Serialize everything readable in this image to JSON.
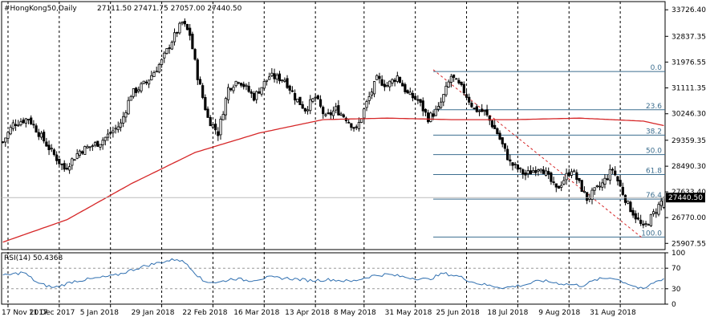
{
  "header": {
    "symbol": "#HongKong50,Daily",
    "ohlc": "27111.50 27471.75 27057.00 27440.50"
  },
  "colors": {
    "background": "#ffffff",
    "candle_bull": "#ffffff",
    "candle_bear": "#000000",
    "ma": "#d62728",
    "fib": "#3c6e8f",
    "rsi": "#2f6fb0",
    "price_tag": "#000000"
  },
  "chart_data": [
    {
      "type": "candlestick",
      "symbol": "#HongKong50",
      "timeframe": "Daily",
      "last": {
        "open": 27111.5,
        "high": 27471.75,
        "low": 27057.0,
        "close": 27440.5,
        "label": "27440.50"
      },
      "y_ticks": [
        "33726.40",
        "32837.35",
        "31976.55",
        "31111.35",
        "30246.30",
        "29359.35",
        "28490.30",
        "27633.40",
        "26770.00",
        "25907.55"
      ],
      "ylim": [
        25700,
        34000
      ],
      "x_ticks": [
        "17 Nov 2017",
        "11 Dec 2017",
        "5 Jan 2018",
        "29 Jan 2018",
        "22 Feb 2018",
        "16 Mar 2018",
        "13 Apr 2018",
        "8 May 2018",
        "31 May 2018",
        "25 Jun 2018",
        "18 Jul 2018",
        "9 Aug 2018",
        "31 Aug 2018"
      ],
      "close_path": [
        [
          0,
          29300
        ],
        [
          4,
          29900
        ],
        [
          10,
          30100
        ],
        [
          18,
          29100
        ],
        [
          24,
          28400
        ],
        [
          30,
          29000
        ],
        [
          38,
          29300
        ],
        [
          46,
          29900
        ],
        [
          50,
          30900
        ],
        [
          56,
          31300
        ],
        [
          62,
          32000
        ],
        [
          66,
          32700
        ],
        [
          70,
          33300
        ],
        [
          73,
          32900
        ],
        [
          76,
          31500
        ],
        [
          80,
          30100
        ],
        [
          84,
          29600
        ],
        [
          88,
          31100
        ],
        [
          92,
          31400
        ],
        [
          98,
          30800
        ],
        [
          104,
          31500
        ],
        [
          110,
          31400
        ],
        [
          114,
          30800
        ],
        [
          118,
          30400
        ],
        [
          122,
          30800
        ],
        [
          126,
          30100
        ],
        [
          130,
          30400
        ],
        [
          134,
          30100
        ],
        [
          138,
          29700
        ],
        [
          142,
          30600
        ],
        [
          146,
          31400
        ],
        [
          150,
          31200
        ],
        [
          154,
          31500
        ],
        [
          158,
          30900
        ],
        [
          162,
          30700
        ],
        [
          166,
          30100
        ],
        [
          170,
          30400
        ],
        [
          175,
          31500
        ],
        [
          180,
          31000
        ],
        [
          184,
          30400
        ],
        [
          188,
          30300
        ],
        [
          193,
          29600
        ],
        [
          198,
          28600
        ],
        [
          204,
          28200
        ],
        [
          210,
          28500
        ],
        [
          216,
          27700
        ],
        [
          222,
          28400
        ],
        [
          228,
          27400
        ],
        [
          234,
          27900
        ],
        [
          238,
          28400
        ],
        [
          244,
          27200
        ],
        [
          250,
          26400
        ],
        [
          254,
          26900
        ],
        [
          258,
          27440
        ]
      ],
      "ma_path": [
        [
          0,
          25950
        ],
        [
          25,
          26700
        ],
        [
          50,
          27900
        ],
        [
          75,
          28950
        ],
        [
          100,
          29600
        ],
        [
          125,
          30050
        ],
        [
          150,
          30100
        ],
        [
          175,
          30050
        ],
        [
          200,
          30050
        ],
        [
          225,
          30100
        ],
        [
          250,
          30000
        ],
        [
          258,
          29850
        ]
      ],
      "fibonacci": {
        "levels": [
          {
            "label": "0.0",
            "price": 31660
          },
          {
            "label": "23.6",
            "price": 30380
          },
          {
            "label": "38.2",
            "price": 29530
          },
          {
            "label": "50.0",
            "price": 28880
          },
          {
            "label": "61.8",
            "price": 28210
          },
          {
            "label": "76.4",
            "price": 27390
          },
          {
            "label": "100.0",
            "price": 26120
          }
        ]
      },
      "trendline": {
        "from": [
          168,
          31720
        ],
        "to": [
          250,
          26060
        ]
      }
    },
    {
      "type": "line",
      "title": "RSI(14) 50.4368",
      "y_ticks": [
        "100",
        "70",
        "30",
        "0"
      ],
      "ylim": [
        0,
        100
      ],
      "values": [
        [
          0,
          55
        ],
        [
          8,
          62
        ],
        [
          14,
          40
        ],
        [
          20,
          32
        ],
        [
          28,
          45
        ],
        [
          36,
          50
        ],
        [
          44,
          56
        ],
        [
          50,
          66
        ],
        [
          56,
          75
        ],
        [
          62,
          82
        ],
        [
          68,
          88
        ],
        [
          72,
          78
        ],
        [
          78,
          45
        ],
        [
          84,
          42
        ],
        [
          90,
          50
        ],
        [
          96,
          46
        ],
        [
          104,
          52
        ],
        [
          112,
          50
        ],
        [
          120,
          46
        ],
        [
          128,
          48
        ],
        [
          136,
          44
        ],
        [
          144,
          55
        ],
        [
          150,
          58
        ],
        [
          158,
          52
        ],
        [
          166,
          48
        ],
        [
          172,
          60
        ],
        [
          178,
          54
        ],
        [
          184,
          42
        ],
        [
          190,
          36
        ],
        [
          196,
          32
        ],
        [
          204,
          38
        ],
        [
          210,
          46
        ],
        [
          218,
          40
        ],
        [
          226,
          36
        ],
        [
          232,
          48
        ],
        [
          238,
          52
        ],
        [
          244,
          40
        ],
        [
          250,
          28
        ],
        [
          254,
          42
        ],
        [
          258,
          50
        ]
      ]
    }
  ]
}
